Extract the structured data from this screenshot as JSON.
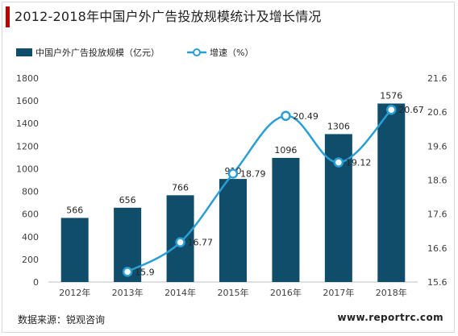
{
  "title": "2012-2018年中国户外广告投放规模统计及增长情况",
  "source_label": "数据来源：锐观咨询",
  "website": "www.reportrc.com",
  "colors": {
    "bar": "#0f4d6b",
    "line": "#2a9fd6",
    "title_accent": "#c00000",
    "text": "#404040"
  },
  "chart_data": {
    "type": "bar",
    "title": "",
    "categories": [
      "2012年",
      "2013年",
      "2014年",
      "2015年",
      "2016年",
      "2017年",
      "2018年"
    ],
    "series": [
      {
        "name": "中国户外广告投放规模（亿元）",
        "type": "bar",
        "axis": "left",
        "values": [
          566,
          656,
          766,
          910,
          1096,
          1306,
          1576
        ]
      },
      {
        "name": "增速（%）",
        "type": "line",
        "axis": "right",
        "values": [
          null,
          15.9,
          16.77,
          18.79,
          20.49,
          19.12,
          20.67
        ]
      }
    ],
    "ylim_left": [
      0,
      1800
    ],
    "yticks_left": [
      0,
      200,
      400,
      600,
      800,
      1000,
      1200,
      1400,
      1600,
      1800
    ],
    "ylim_right": [
      15.6,
      21.6
    ],
    "yticks_right": [
      "15.6",
      "16.6",
      "17.6",
      "18.6",
      "19.6",
      "20.6",
      "21.6"
    ],
    "legend_position": "top-left",
    "grid": false,
    "bar_labels": [
      "566",
      "656",
      "766",
      "910",
      "1096",
      "1306",
      "1576"
    ],
    "line_labels": [
      "",
      "15.9",
      "16.77",
      "18.79",
      "20.49",
      "19.12",
      "20.67"
    ]
  }
}
